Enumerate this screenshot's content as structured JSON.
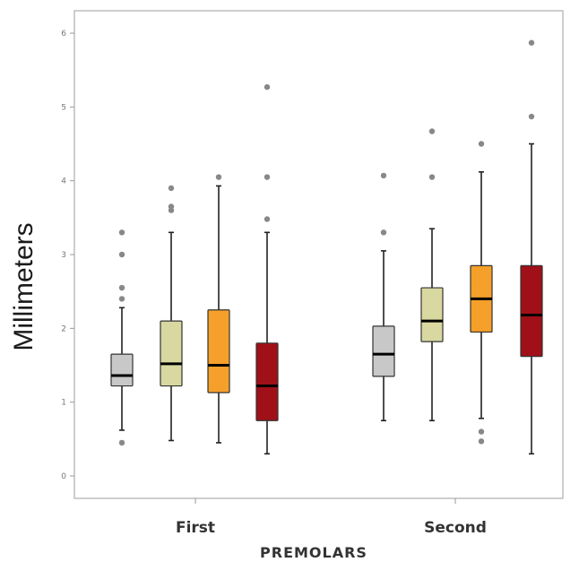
{
  "chart_data": {
    "type": "boxplot",
    "xlabel": "PREMOLARS",
    "ylabel": "Millimeters",
    "ylim": [
      0,
      6.2
    ],
    "yticks": [
      0,
      1,
      2,
      3,
      4,
      5,
      6
    ],
    "grid": false,
    "categories": [
      "First",
      "Second"
    ],
    "colors": [
      "#c8c8c8",
      "#d8d8a0",
      "#f5a02a",
      "#a01018"
    ],
    "boxes": [
      {
        "category": "First",
        "color": "#c8c8c8",
        "whisker_low": 0.62,
        "q1": 1.22,
        "median": 1.36,
        "q3": 1.65,
        "whisker_high": 2.28,
        "outliers": [
          0.45,
          2.4,
          2.55,
          3.0,
          3.3
        ]
      },
      {
        "category": "First",
        "color": "#d8d8a0",
        "whisker_low": 0.48,
        "q1": 1.22,
        "median": 1.52,
        "q3": 2.1,
        "whisker_high": 3.3,
        "outliers": [
          3.6,
          3.65,
          3.9
        ]
      },
      {
        "category": "First",
        "color": "#f5a02a",
        "whisker_low": 0.45,
        "q1": 1.13,
        "median": 1.5,
        "q3": 2.25,
        "whisker_high": 3.93,
        "outliers": [
          4.05
        ]
      },
      {
        "category": "First",
        "color": "#a01018",
        "whisker_low": 0.3,
        "q1": 0.75,
        "median": 1.22,
        "q3": 1.8,
        "whisker_high": 3.3,
        "outliers": [
          3.48,
          4.05,
          5.27
        ]
      },
      {
        "category": "Second",
        "color": "#c8c8c8",
        "whisker_low": 0.75,
        "q1": 1.35,
        "median": 1.65,
        "q3": 2.03,
        "whisker_high": 3.05,
        "outliers": [
          3.3,
          4.07
        ]
      },
      {
        "category": "Second",
        "color": "#d8d8a0",
        "whisker_low": 0.75,
        "q1": 1.82,
        "median": 2.1,
        "q3": 2.55,
        "whisker_high": 3.35,
        "outliers": [
          4.05,
          4.67
        ]
      },
      {
        "category": "Second",
        "color": "#f5a02a",
        "whisker_low": 0.78,
        "q1": 1.95,
        "median": 2.4,
        "q3": 2.85,
        "whisker_high": 4.12,
        "outliers": [
          0.47,
          0.6,
          4.5
        ]
      },
      {
        "category": "Second",
        "color": "#a01018",
        "whisker_low": 0.3,
        "q1": 1.62,
        "median": 2.18,
        "q3": 2.85,
        "whisker_high": 4.5,
        "outliers": [
          4.87,
          5.87
        ]
      }
    ]
  }
}
